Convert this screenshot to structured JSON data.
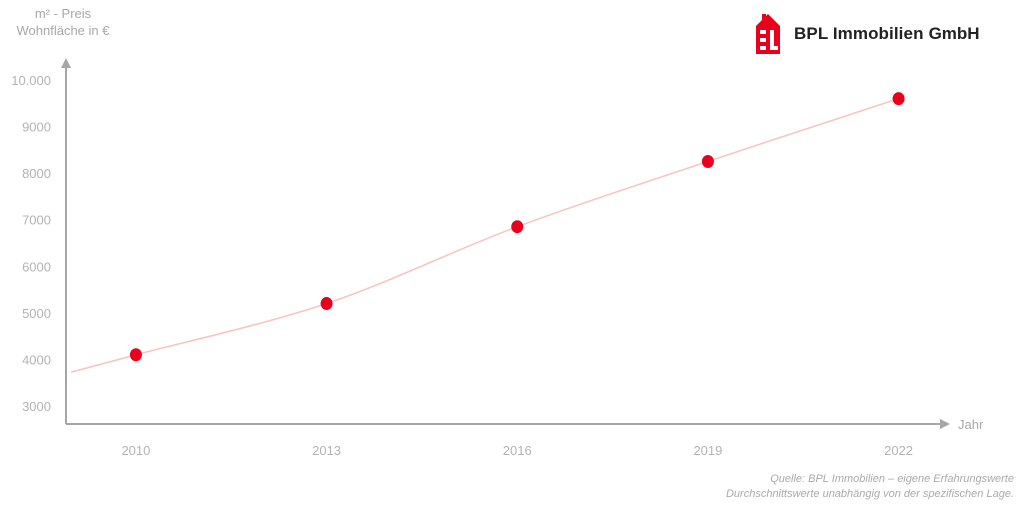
{
  "brand": {
    "name": "BPL Immobilien",
    "suffix": "GmbH",
    "logo_color": "#e8001c"
  },
  "source": {
    "line1": "Quelle: BPL Immobilien – eigene Erfahrungswerte",
    "line2": "Durchschnittswerte unabhängig von der spezifischen Lage."
  },
  "chart_data": {
    "type": "line",
    "ylabel_line1": "m² - Preis",
    "ylabel_line2": "Wohnfläche in €",
    "xlabel": "Jahr",
    "x": [
      2010,
      2013,
      2016,
      2019,
      2022
    ],
    "values": [
      4100,
      5200,
      6850,
      8250,
      9600
    ],
    "x_tick_labels": [
      "2010",
      "2013",
      "2016",
      "2019",
      "2022"
    ],
    "y_ticks": [
      3000,
      4000,
      5000,
      6000,
      7000,
      8000,
      9000,
      10000
    ],
    "y_tick_labels": [
      "3000",
      "4000",
      "5000",
      "6000",
      "7000",
      "8000",
      "9000",
      "10.000"
    ],
    "ylim": [
      2600,
      10500
    ],
    "grid": false,
    "point_color": "#e8001c",
    "line_color": "#f6c6c0"
  }
}
